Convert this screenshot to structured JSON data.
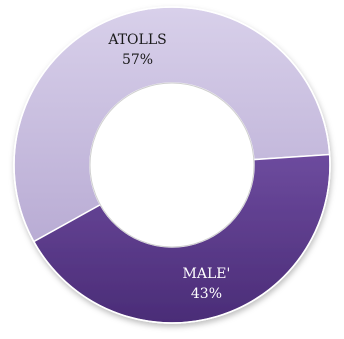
{
  "chart_data": {
    "type": "pie",
    "variant": "donut",
    "categories": [
      "ATOLLS",
      "MALE'"
    ],
    "values": [
      57,
      43
    ],
    "value_labels": [
      "57%",
      "43%"
    ],
    "colors": [
      "#c9bfdf",
      "#5c3d8c"
    ],
    "label_colors": [
      "#1a1a1a",
      "#ffffff"
    ],
    "title": "",
    "legend": "none"
  }
}
